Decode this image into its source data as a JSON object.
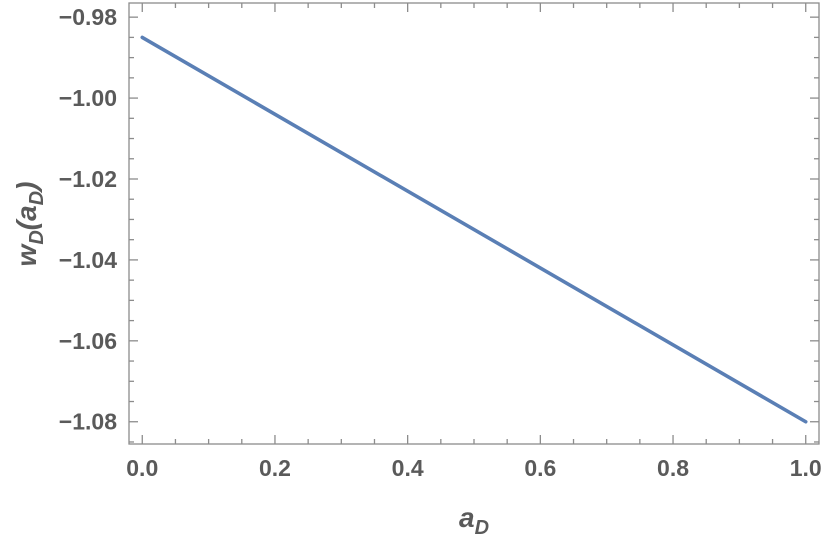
{
  "chart_data": {
    "type": "line",
    "xlabel": {
      "main": "a",
      "sub": "D"
    },
    "ylabel": {
      "main": "w",
      "sub": "D",
      "paren_main": "a",
      "paren_sub": "D"
    },
    "xlim": [
      -0.02,
      1.02
    ],
    "ylim": [
      -1.0855,
      -0.9765
    ],
    "x_ticks": [
      {
        "value": 0.0,
        "label": "0.0"
      },
      {
        "value": 0.2,
        "label": "0.2"
      },
      {
        "value": 0.4,
        "label": "0.4"
      },
      {
        "value": 0.6,
        "label": "0.6"
      },
      {
        "value": 0.8,
        "label": "0.8"
      },
      {
        "value": 1.0,
        "label": "1.0"
      }
    ],
    "y_ticks": [
      {
        "value": -0.98,
        "label": "−0.98"
      },
      {
        "value": -1.0,
        "label": "−1.00"
      },
      {
        "value": -1.02,
        "label": "−1.02"
      },
      {
        "value": -1.04,
        "label": "−1.04"
      },
      {
        "value": -1.06,
        "label": "−1.06"
      },
      {
        "value": -1.08,
        "label": "−1.08"
      }
    ],
    "series": [
      {
        "x": [
          0.0,
          1.0
        ],
        "y": [
          -0.985,
          -1.08
        ],
        "color": "#5a7fb5"
      }
    ],
    "grid": false,
    "frame_color": "#8c8c8c"
  }
}
